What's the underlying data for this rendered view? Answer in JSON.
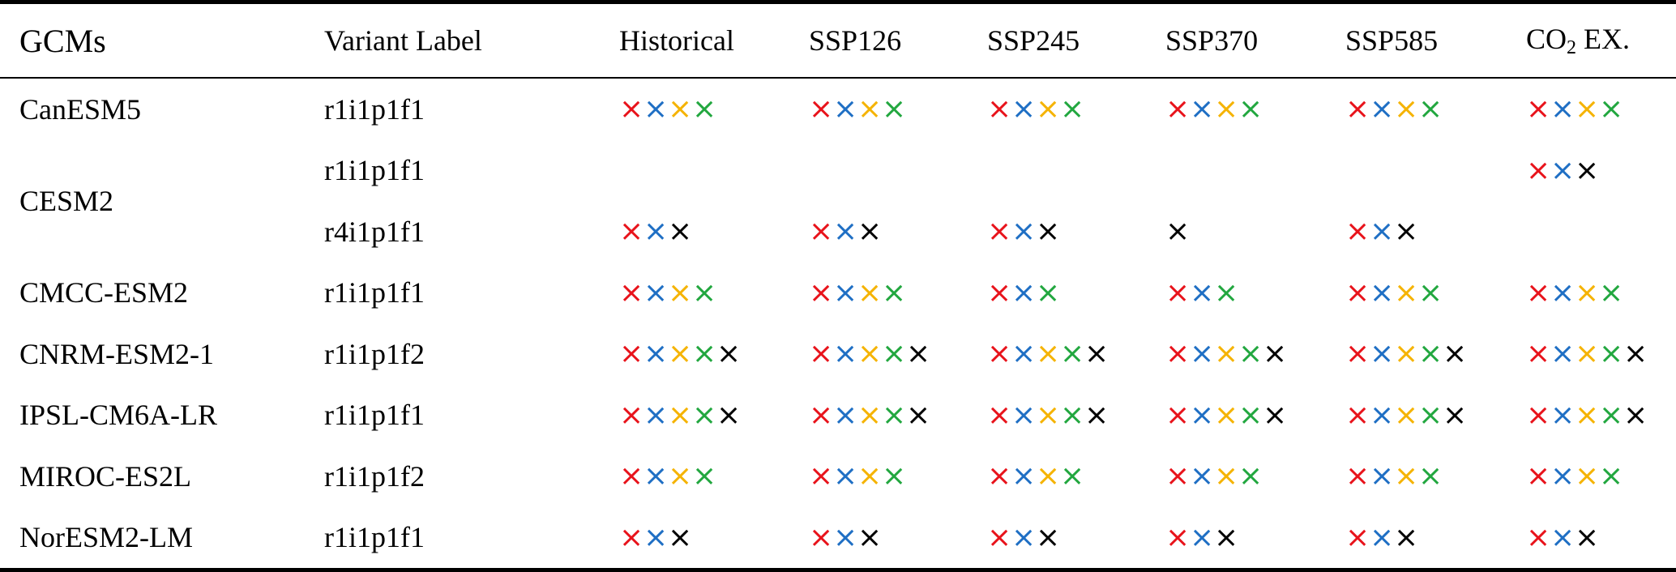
{
  "colors": {
    "red": "#e8131b",
    "blue": "#1f6fc4",
    "yellow": "#f5b301",
    "green": "#22a73f",
    "black": "#000000"
  },
  "mark_glyph": "×",
  "headers": {
    "gcms": "GCMs",
    "variant": "Variant Label",
    "historical": "Historical",
    "ssp126": "SSP126",
    "ssp245": "SSP245",
    "ssp370": "SSP370",
    "ssp585": "SSP585",
    "co2_prefix": "CO",
    "co2_sub": "2",
    "co2_suffix": " EX."
  },
  "rows": [
    {
      "model": "CanESM5",
      "variant": "r1i1p1f1",
      "cells": [
        [
          "red",
          "blue",
          "yellow",
          "green"
        ],
        [
          "red",
          "blue",
          "yellow",
          "green"
        ],
        [
          "red",
          "blue",
          "yellow",
          "green"
        ],
        [
          "red",
          "blue",
          "yellow",
          "green"
        ],
        [
          "red",
          "blue",
          "yellow",
          "green"
        ],
        [
          "red",
          "blue",
          "yellow",
          "green"
        ]
      ]
    },
    {
      "model": "CESM2",
      "variant": "r1i1p1f1",
      "rowspan_model": 2,
      "cells": [
        [],
        [],
        [],
        [],
        [],
        [
          "red",
          "blue",
          "black"
        ]
      ]
    },
    {
      "variant": "r4i1p1f1",
      "cells": [
        [
          "red",
          "blue",
          "black"
        ],
        [
          "red",
          "blue",
          "black"
        ],
        [
          "red",
          "blue",
          "black"
        ],
        [
          "black"
        ],
        [
          "red",
          "blue",
          "black"
        ],
        []
      ]
    },
    {
      "model": "CMCC-ESM2",
      "variant": "r1i1p1f1",
      "cells": [
        [
          "red",
          "blue",
          "yellow",
          "green"
        ],
        [
          "red",
          "blue",
          "yellow",
          "green"
        ],
        [
          "red",
          "blue",
          "green"
        ],
        [
          "red",
          "blue",
          "green"
        ],
        [
          "red",
          "blue",
          "yellow",
          "green"
        ],
        [
          "red",
          "blue",
          "yellow",
          "green"
        ]
      ]
    },
    {
      "model": "CNRM-ESM2-1",
      "variant": "r1i1p1f2",
      "cells": [
        [
          "red",
          "blue",
          "yellow",
          "green",
          "black"
        ],
        [
          "red",
          "blue",
          "yellow",
          "green",
          "black"
        ],
        [
          "red",
          "blue",
          "yellow",
          "green",
          "black"
        ],
        [
          "red",
          "blue",
          "yellow",
          "green",
          "black"
        ],
        [
          "red",
          "blue",
          "yellow",
          "green",
          "black"
        ],
        [
          "red",
          "blue",
          "yellow",
          "green",
          "black"
        ]
      ]
    },
    {
      "model": "IPSL-CM6A-LR",
      "variant": "r1i1p1f1",
      "cells": [
        [
          "red",
          "blue",
          "yellow",
          "green",
          "black"
        ],
        [
          "red",
          "blue",
          "yellow",
          "green",
          "black"
        ],
        [
          "red",
          "blue",
          "yellow",
          "green",
          "black"
        ],
        [
          "red",
          "blue",
          "yellow",
          "green",
          "black"
        ],
        [
          "red",
          "blue",
          "yellow",
          "green",
          "black"
        ],
        [
          "red",
          "blue",
          "yellow",
          "green",
          "black"
        ]
      ]
    },
    {
      "model": "MIROC-ES2L",
      "variant": "r1i1p1f2",
      "cells": [
        [
          "red",
          "blue",
          "yellow",
          "green"
        ],
        [
          "red",
          "blue",
          "yellow",
          "green"
        ],
        [
          "red",
          "blue",
          "yellow",
          "green"
        ],
        [
          "red",
          "blue",
          "yellow",
          "green"
        ],
        [
          "red",
          "blue",
          "yellow",
          "green"
        ],
        [
          "red",
          "blue",
          "yellow",
          "green"
        ]
      ]
    },
    {
      "model": "NorESM2-LM",
      "variant": "r1i1p1f1",
      "cells": [
        [
          "red",
          "blue",
          "black"
        ],
        [
          "red",
          "blue",
          "black"
        ],
        [
          "red",
          "blue",
          "black"
        ],
        [
          "red",
          "blue",
          "black"
        ],
        [
          "red",
          "blue",
          "black"
        ],
        [
          "red",
          "blue",
          "black"
        ]
      ]
    }
  ]
}
